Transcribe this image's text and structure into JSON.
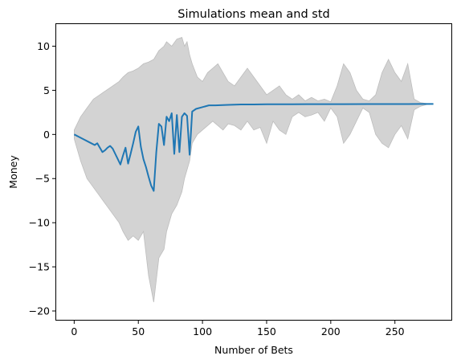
{
  "chart_data": {
    "type": "line",
    "title": "Simulations mean and std",
    "xlabel": "Number of Bets",
    "ylabel": "Money",
    "xlim": [
      -14,
      294
    ],
    "ylim": [
      -21,
      12.5
    ],
    "xticks": [
      0,
      50,
      100,
      150,
      200,
      250
    ],
    "yticks": [
      -20,
      -15,
      -10,
      -5,
      0,
      5,
      10
    ],
    "grid": false,
    "legend": "none",
    "colors": {
      "mean_line": "#1f77b4",
      "std_band": "#d3d3d3",
      "std_band_edge": "#bdbdbd"
    },
    "series": [
      {
        "type": "line",
        "x": [
          0,
          4,
          8,
          12,
          16,
          18,
          20,
          22,
          24,
          26,
          28,
          30,
          32,
          34,
          36,
          38,
          40,
          42,
          44,
          46,
          48,
          50,
          52,
          54,
          56,
          58,
          60,
          62,
          64,
          66,
          68,
          70,
          72,
          74,
          76,
          78,
          80,
          82,
          84,
          86,
          88,
          90,
          92,
          95,
          100,
          105,
          110,
          120,
          130,
          140,
          150,
          170,
          190,
          210,
          230,
          250,
          270,
          280
        ],
        "y": [
          0,
          -0.3,
          -0.6,
          -0.9,
          -1.2,
          -1.0,
          -1.5,
          -2.0,
          -1.8,
          -1.5,
          -1.3,
          -1.6,
          -2.2,
          -2.8,
          -3.4,
          -2.4,
          -1.5,
          -3.3,
          -2.2,
          -1.0,
          0.3,
          0.9,
          -1.4,
          -2.8,
          -3.7,
          -4.8,
          -5.8,
          -6.4,
          -2.0,
          1.2,
          0.9,
          -1.2,
          2.0,
          1.5,
          2.4,
          -2.2,
          2.2,
          -2.0,
          2.0,
          2.4,
          2.1,
          -2.3,
          2.6,
          2.9,
          3.1,
          3.3,
          3.3,
          3.35,
          3.4,
          3.4,
          3.42,
          3.42,
          3.43,
          3.43,
          3.44,
          3.44,
          3.45,
          3.45
        ]
      },
      {
        "type": "band",
        "x": [
          0,
          5,
          10,
          15,
          20,
          25,
          30,
          35,
          38,
          42,
          46,
          50,
          54,
          58,
          62,
          66,
          70,
          72,
          76,
          80,
          84,
          86,
          88,
          90,
          92,
          96,
          100,
          104,
          108,
          112,
          116,
          120,
          125,
          130,
          135,
          140,
          145,
          150,
          155,
          160,
          165,
          170,
          175,
          180,
          185,
          190,
          195,
          200,
          205,
          210,
          215,
          220,
          225,
          230,
          235,
          240,
          245,
          250,
          255,
          260,
          265,
          270,
          275,
          280
        ],
        "upper": [
          0.5,
          2.0,
          3.0,
          4.0,
          4.5,
          5.0,
          5.5,
          6.0,
          6.5,
          7.0,
          7.2,
          7.5,
          8.0,
          8.2,
          8.5,
          9.5,
          10.0,
          10.5,
          10.0,
          10.8,
          11.0,
          10.0,
          10.5,
          9.0,
          8.0,
          6.5,
          6.0,
          7.0,
          7.5,
          8.0,
          7.0,
          6.0,
          5.5,
          6.5,
          7.5,
          6.5,
          5.5,
          4.5,
          5.0,
          5.5,
          4.5,
          4.0,
          4.5,
          3.8,
          4.2,
          3.8,
          4.0,
          3.7,
          5.5,
          8.0,
          7.0,
          5.0,
          4.0,
          3.8,
          4.5,
          7.0,
          8.5,
          7.0,
          6.0,
          8.0,
          4.0,
          3.6,
          3.5,
          3.45
        ],
        "lower": [
          -0.5,
          -3.0,
          -5.0,
          -6.0,
          -7.0,
          -8.0,
          -9.0,
          -10.0,
          -11.0,
          -12.0,
          -11.5,
          -12.0,
          -11.0,
          -16.0,
          -19.0,
          -14.0,
          -13.0,
          -11.0,
          -9.0,
          -8.0,
          -6.5,
          -5.0,
          -4.0,
          -3.0,
          -1.0,
          0.0,
          0.5,
          1.0,
          1.5,
          1.0,
          0.5,
          1.2,
          1.0,
          0.5,
          1.5,
          0.5,
          0.8,
          -1.0,
          1.5,
          0.5,
          0.0,
          2.0,
          2.5,
          2.0,
          2.2,
          2.5,
          1.5,
          3.0,
          2.0,
          -1.0,
          0.0,
          1.5,
          3.0,
          2.5,
          0.0,
          -1.0,
          -1.5,
          0.0,
          1.0,
          -0.5,
          2.8,
          3.2,
          3.4,
          3.45
        ]
      }
    ]
  }
}
